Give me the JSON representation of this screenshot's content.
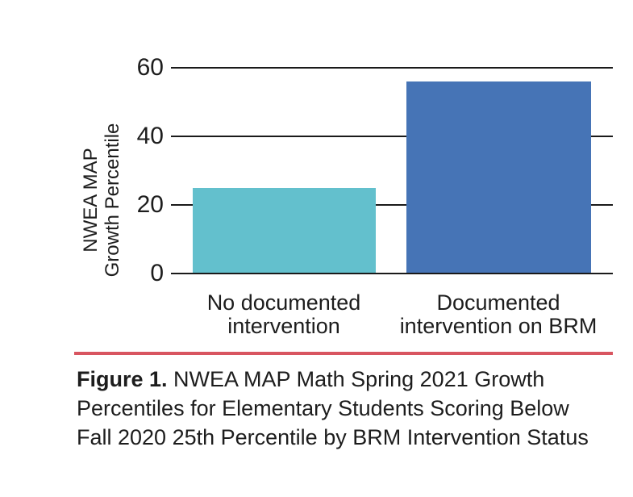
{
  "chart_data": {
    "type": "bar",
    "categories": [
      "No documented\nintervention",
      "Documented\nintervention on BRM"
    ],
    "values": [
      25,
      56
    ],
    "bar_colors": [
      "#63c0cd",
      "#4674b6"
    ],
    "title": "",
    "xlabel": "",
    "ylabel": "NWEA MAP Growth Percentile",
    "ylabel_lines": [
      "NWEA MAP",
      "Growth Percentile"
    ],
    "yticks": [
      0,
      20,
      40,
      60
    ],
    "ylim": [
      0,
      60
    ],
    "grid": "horizontal gridlines on, drawn behind bars",
    "legend": "none"
  },
  "caption": {
    "prefix": "Figure 1.",
    "lines": [
      "NWEA MAP Math Spring 2021 Growth",
      "Percentiles for Elementary Students Scoring Below",
      "Fall 2020 25th Percentile by BRM Intervention Status"
    ],
    "full_text": "Figure 1. NWEA MAP Math Spring 2021 Growth Percentiles for Elementary Students Scoring Below Fall 2020 25th Percentile by BRM Intervention Status"
  },
  "colors": {
    "bar_no_documented_intervention": "#63c0cd",
    "bar_documented_intervention": "#4674b6",
    "divider_line": "#d85560",
    "text": "#1d1d1d",
    "gridline": "#1a1a1a",
    "background": "#ffffff"
  }
}
